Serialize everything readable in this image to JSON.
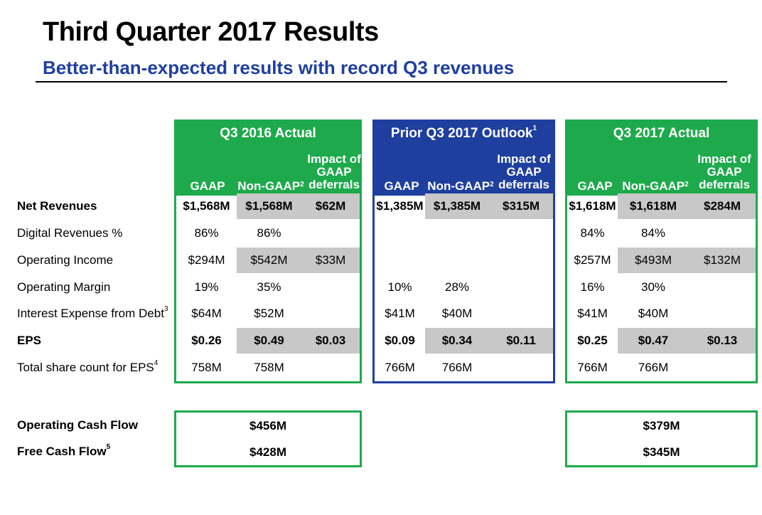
{
  "header": {
    "title": "Third Quarter 2017 Results",
    "subtitle": "Better-than-expected results with record Q3 revenues"
  },
  "rows": {
    "net_revenues": "Net Revenues",
    "digital_revenues": "Digital Revenues %",
    "operating_income": "Operating Income",
    "operating_margin": "Operating Margin",
    "interest_expense": "Interest Expense from Debt",
    "interest_expense_sup": "3",
    "eps": "EPS",
    "share_count": "Total share count for EPS",
    "share_count_sup": "4",
    "operating_cash_flow": "Operating Cash Flow",
    "free_cash_flow": "Free Cash Flow",
    "free_cash_flow_sup": "5"
  },
  "columns": {
    "gaap": "GAAP",
    "non_gaap": "Non-GAAP",
    "non_gaap_sup": "2",
    "impact_line1": "Impact of",
    "impact_line2": "GAAP",
    "impact_line3": "deferrals"
  },
  "q3_2016": {
    "title": "Q3 2016 Actual",
    "net_revenues": [
      "$1,568M",
      "$1,568M",
      "$62M"
    ],
    "digital_revenues": [
      "86%",
      "86%",
      ""
    ],
    "operating_income": [
      "$294M",
      "$542M",
      "$33M"
    ],
    "operating_margin": [
      "19%",
      "35%",
      ""
    ],
    "interest_expense": [
      "$64M",
      "$52M",
      ""
    ],
    "eps": [
      "$0.26",
      "$0.49",
      "$0.03"
    ],
    "share_count": [
      "758M",
      "758M",
      ""
    ],
    "operating_cash_flow": "$456M",
    "free_cash_flow": "$428M"
  },
  "outlook_2017": {
    "title": "Prior Q3 2017 Outlook",
    "title_sup": "1",
    "net_revenues": [
      "$1,385M",
      "$1,385M",
      "$315M"
    ],
    "operating_margin": [
      "10%",
      "28%",
      ""
    ],
    "interest_expense": [
      "$41M",
      "$40M",
      ""
    ],
    "eps": [
      "$0.09",
      "$0.34",
      "$0.11"
    ],
    "share_count": [
      "766M",
      "766M",
      ""
    ]
  },
  "q3_2017": {
    "title": "Q3 2017 Actual",
    "net_revenues": [
      "$1,618M",
      "$1,618M",
      "$284M"
    ],
    "digital_revenues": [
      "84%",
      "84%",
      ""
    ],
    "operating_income": [
      "$257M",
      "$493M",
      "$132M"
    ],
    "operating_margin": [
      "16%",
      "30%",
      ""
    ],
    "interest_expense": [
      "$41M",
      "$40M",
      ""
    ],
    "eps": [
      "$0.25",
      "$0.47",
      "$0.13"
    ],
    "share_count": [
      "766M",
      "766M",
      ""
    ],
    "operating_cash_flow": "$379M",
    "free_cash_flow": "$345M"
  },
  "colors": {
    "green": "#1eaa4c",
    "blue": "#1f3f9e",
    "gray": "#c8c8c8"
  }
}
